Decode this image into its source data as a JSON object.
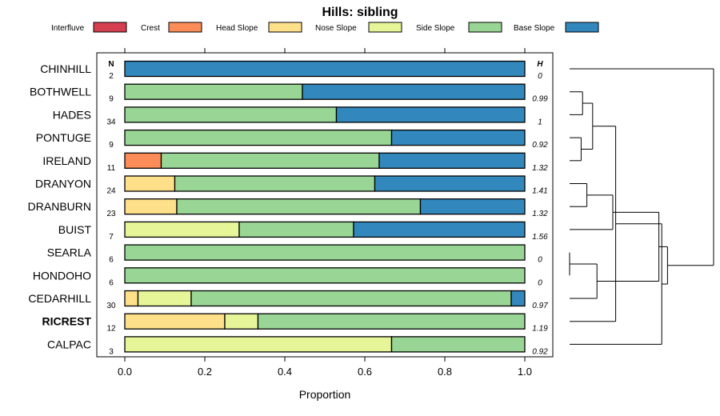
{
  "chart_data": {
    "type": "bar",
    "orientation": "horizontal",
    "stacked": true,
    "title": "Hills: sibling",
    "xlabel": "Proportion",
    "ylabel": "",
    "xlim": [
      0,
      1
    ],
    "x_ticks": [
      "0.0",
      "0.2",
      "0.4",
      "0.6",
      "0.8",
      "1.0"
    ],
    "n_header": "N",
    "h_header": "H",
    "legend": [
      {
        "name": "Interfluve",
        "color": "#D53E4F"
      },
      {
        "name": "Crest",
        "color": "#FC8D59"
      },
      {
        "name": "Head Slope",
        "color": "#FEE08B"
      },
      {
        "name": "Nose Slope",
        "color": "#E6F598"
      },
      {
        "name": "Side Slope",
        "color": "#99D594"
      },
      {
        "name": "Base Slope",
        "color": "#3288BD"
      }
    ],
    "categories": [
      "CHINHILL",
      "BOTHWELL",
      "HADES",
      "PONTUGE",
      "IRELAND",
      "DRANYON",
      "DRANBURN",
      "BUIST",
      "SEARLA",
      "HONDOHO",
      "CEDARHILL",
      "RICREST",
      "CALPAC"
    ],
    "highlight": "RICREST",
    "n_values": [
      "2",
      "9",
      "34",
      "9",
      "11",
      "24",
      "23",
      "7",
      "6",
      "6",
      "30",
      "12",
      "3"
    ],
    "h_values": [
      "0",
      "0.99",
      "1",
      "0.92",
      "1.32",
      "1.41",
      "1.32",
      "1.56",
      "0",
      "0",
      "0.97",
      "1.19",
      "0.92"
    ],
    "series": [
      {
        "name": "Interfluve",
        "values": [
          0,
          0,
          0,
          0,
          0,
          0,
          0,
          0,
          0,
          0,
          0,
          0,
          0
        ]
      },
      {
        "name": "Crest",
        "values": [
          0,
          0,
          0,
          0,
          0.091,
          0,
          0,
          0,
          0,
          0,
          0,
          0,
          0
        ]
      },
      {
        "name": "Head Slope",
        "values": [
          0,
          0,
          0,
          0,
          0,
          0.125,
          0.13,
          0,
          0,
          0,
          0.033,
          0.25,
          0
        ]
      },
      {
        "name": "Nose Slope",
        "values": [
          0,
          0,
          0,
          0,
          0,
          0,
          0,
          0.286,
          0,
          0,
          0.133,
          0.083,
          0.667
        ]
      },
      {
        "name": "Side Slope",
        "values": [
          0,
          0.444,
          0.529,
          0.667,
          0.545,
          0.5,
          0.609,
          0.286,
          1,
          1,
          0.8,
          0.667,
          0.333
        ]
      },
      {
        "name": "Base Slope",
        "values": [
          1,
          0.556,
          0.471,
          0.333,
          0.364,
          0.375,
          0.261,
          0.428,
          0,
          0,
          0.034,
          0,
          0
        ]
      }
    ],
    "dendrogram": {
      "leaf_order": [
        "CHINHILL",
        "BOTHWELL",
        "HADES",
        "PONTUGE",
        "IRELAND",
        "DRANYON",
        "DRANBURN",
        "BUIST",
        "SEARLA",
        "HONDOHO",
        "CEDARHILL",
        "RICREST",
        "CALPAC"
      ],
      "merges": [
        {
          "a": "SEARLA",
          "b": "HONDOHO",
          "height": 0
        },
        {
          "a": "BOTHWELL",
          "b": "HADES",
          "height": 0.09
        },
        {
          "a": "PONTUGE",
          "b": "IRELAND",
          "height": 0.08
        },
        {
          "a": "DRANYON",
          "b": "DRANBURN",
          "height": 0.12
        },
        {
          "a": "m2",
          "b": "m3",
          "height": 0.16
        },
        {
          "a": "m1",
          "b": "CEDARHILL",
          "height": 0.19
        },
        {
          "a": "m4",
          "b": "BUIST",
          "height": 0.3
        },
        {
          "a": "m5",
          "b": "RICREST",
          "height": 0.32
        },
        {
          "a": "m6",
          "b": "m7",
          "height": 0.62
        },
        {
          "a": "m8",
          "b": "CALPAC",
          "height": 0.64
        },
        {
          "a": "m9",
          "b": "m10",
          "height": 0.68
        },
        {
          "a": "CHINHILL",
          "b": "m11",
          "height": 1.0
        }
      ]
    }
  }
}
